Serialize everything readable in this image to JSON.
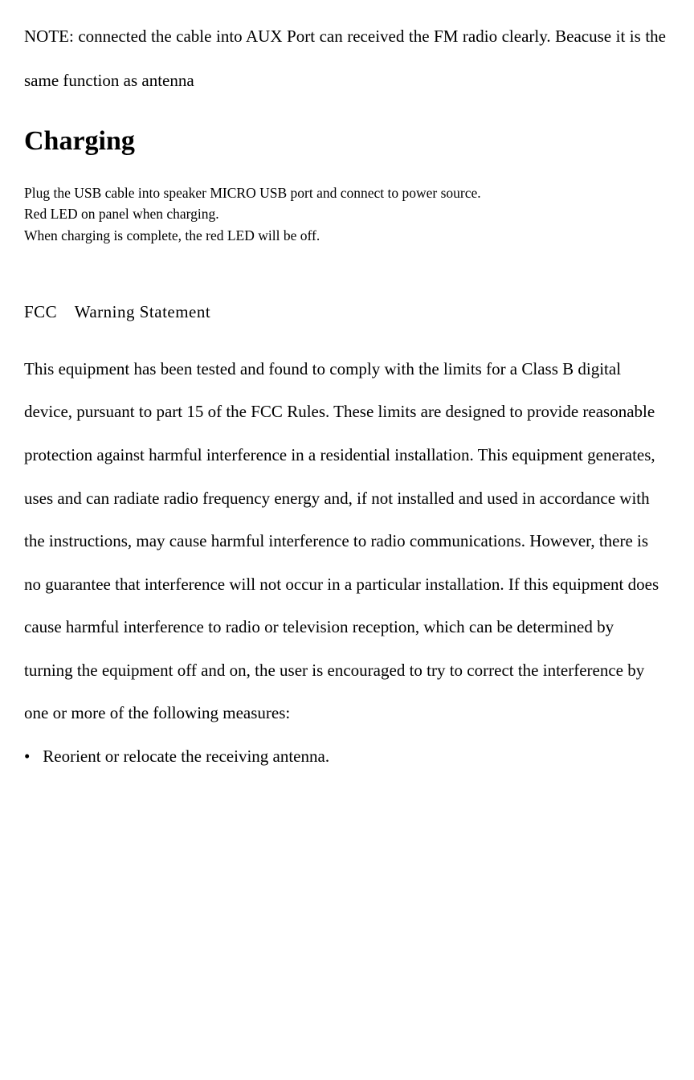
{
  "note": {
    "text": "NOTE: connected the cable into AUX Port can received the FM radio clearly. Beacuse it is the same function as antenna"
  },
  "charging": {
    "heading": "Charging",
    "line1": "Plug the USB cable into speaker MICRO USB port and connect to power source.",
    "line2": "Red LED on panel when charging.",
    "line3": "When charging is complete, the red LED will be off."
  },
  "fcc": {
    "title": "FCC Warning Statement",
    "body": "This equipment has been tested and found to comply with the limits for a Class B digital device, pursuant to part 15 of the FCC Rules. These limits are designed to provide reasonable protection against harmful interference in a residential installation. This equipment generates, uses and can radiate radio frequency energy and, if not installed and used in accordance with the instructions, may cause harmful interference to radio communications. However, there is no guarantee that interference will not occur in a particular installation. If this equipment does cause harmful interference to radio or television reception, which can be determined by turning the equipment off and on, the user is encouraged to try to correct the interference by one or more of the following measures:",
    "bullet1": "Reorient or relocate the receiving antenna."
  },
  "styling": {
    "background_color": "#ffffff",
    "text_color": "#000000",
    "font_family": "Times New Roman",
    "note_fontsize": 21,
    "heading_fontsize": 34,
    "charging_text_fontsize": 17.5,
    "fcc_fontsize": 21,
    "line_height": 2.55
  }
}
